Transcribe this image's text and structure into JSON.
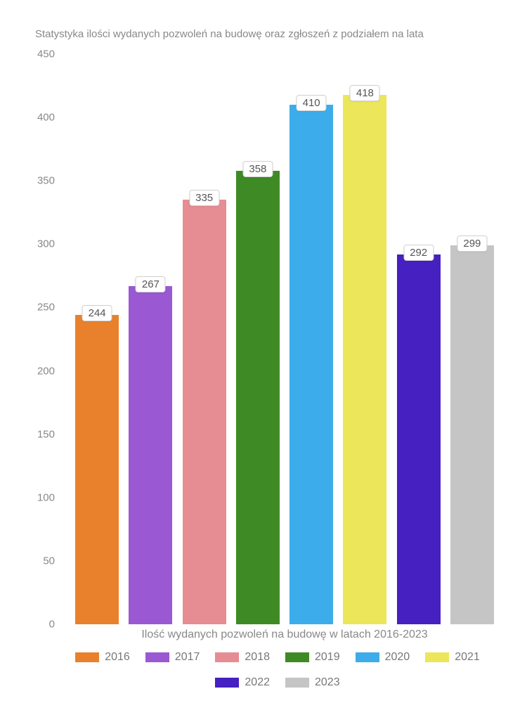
{
  "chart": {
    "type": "bar",
    "title": "Statystyka ilości wydanych pozwoleń na budowę oraz zgłoszeń z podziałem na lata",
    "xlabel": "Ilość wydanych pozwoleń na budowę w latach 2016-2023",
    "categories": [
      "2016",
      "2017",
      "2018",
      "2019",
      "2020",
      "2021",
      "2022",
      "2023"
    ],
    "values": [
      244,
      267,
      335,
      358,
      410,
      418,
      292,
      299
    ],
    "bar_colors": [
      "#e9812c",
      "#9b58d3",
      "#e58d93",
      "#3e8b25",
      "#3dacea",
      "#ece65a",
      "#4620c0",
      "#c5c5c5"
    ],
    "ylim": [
      0,
      450
    ],
    "ytick_step": 50,
    "yticks": [
      0,
      50,
      100,
      150,
      200,
      250,
      300,
      350,
      400,
      450
    ],
    "background_color": "#ffffff",
    "title_fontsize": 15,
    "label_fontsize": 16,
    "tick_fontsize": 15,
    "axis_color": "#888888",
    "value_label_bg": "#ffffff",
    "value_label_border": "#d0d0d0",
    "bar_width": 0.85
  }
}
